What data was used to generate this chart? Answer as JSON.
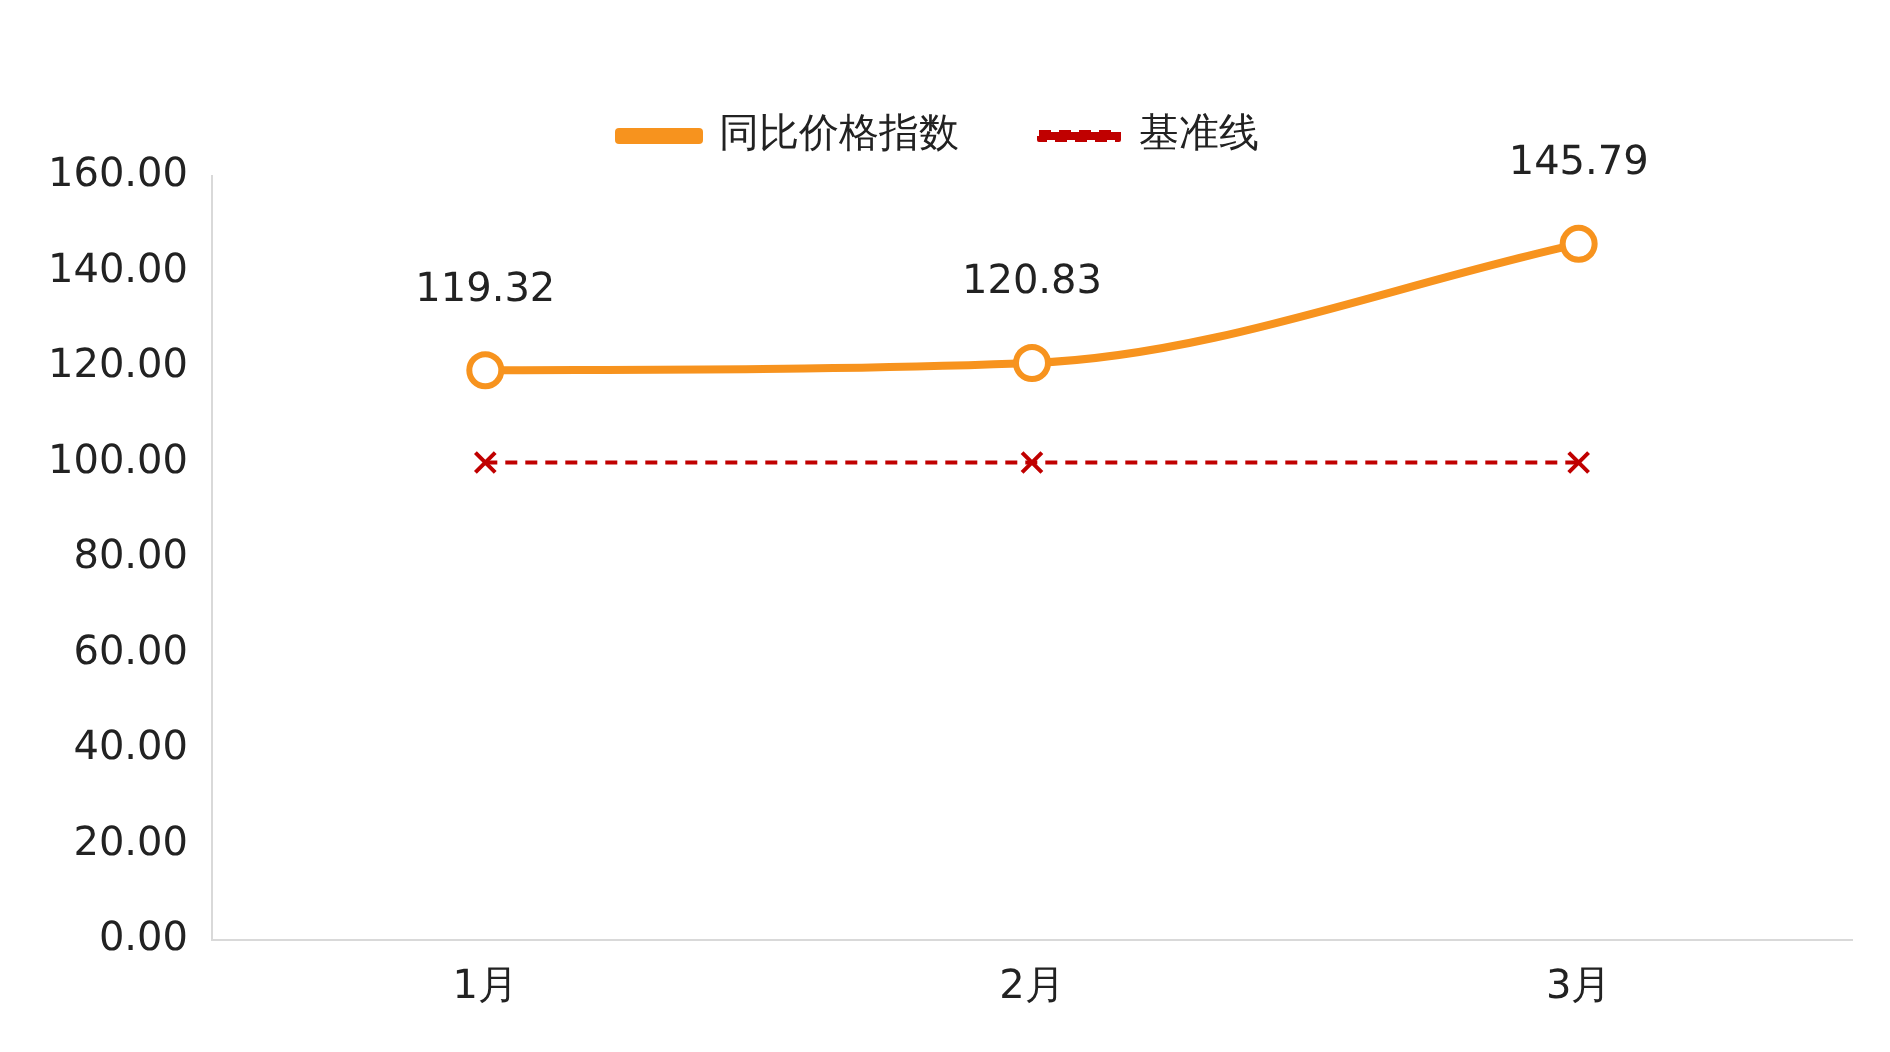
{
  "chart_data": {
    "type": "line",
    "categories": [
      "1月",
      "2月",
      "3月"
    ],
    "series": [
      {
        "name": "同比价格指数",
        "color": "#f7931e",
        "values": [
          119.32,
          120.83,
          145.79
        ],
        "marker": "circle",
        "line_style": "solid",
        "value_labels": [
          "119.32",
          "120.83",
          "145.79"
        ]
      },
      {
        "name": "基准线",
        "color": "#c00000",
        "values": [
          100,
          100,
          100
        ],
        "marker": "cross",
        "line_style": "dashed"
      }
    ],
    "ylim": [
      0,
      160
    ],
    "yticks": [
      {
        "value": 0,
        "label": "0.00"
      },
      {
        "value": 20,
        "label": "20.00"
      },
      {
        "value": 40,
        "label": "40.00"
      },
      {
        "value": 60,
        "label": "60.00"
      },
      {
        "value": 80,
        "label": "80.00"
      },
      {
        "value": 100,
        "label": "100.00"
      },
      {
        "value": 120,
        "label": "120.00"
      },
      {
        "value": 140,
        "label": "140.00"
      },
      {
        "value": 160,
        "label": "160.00"
      }
    ],
    "legend": "top"
  }
}
